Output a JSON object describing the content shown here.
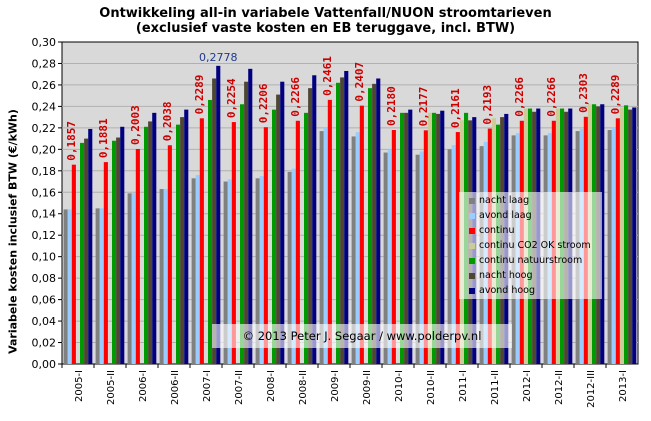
{
  "chart_data": {
    "type": "bar",
    "title": "Ontwikkeling  all-in variabele Vattenfall/NUON stroomtarieven",
    "subtitle": "(exclusief vaste kosten en EB teruggave, incl. BTW)",
    "xlabel": "",
    "ylabel": "Variabele kosten inclusief BTW (€/kWh)",
    "ylim": [
      0,
      0.3
    ],
    "yticks": [
      "0,00",
      "0,02",
      "0,04",
      "0,06",
      "0,08",
      "0,10",
      "0,12",
      "0,14",
      "0,16",
      "0,18",
      "0,20",
      "0,22",
      "0,24",
      "0,26",
      "0,28",
      "0,30"
    ],
    "grid": true,
    "legend_position": "bottom-right",
    "categories": [
      "2005-I",
      "2005-II",
      "2006-I",
      "2006-II",
      "2007-I",
      "2007-II",
      "2008-I",
      "2008-II",
      "2009-I",
      "2009-II",
      "2010-I",
      "2010-II",
      "2011-I",
      "2011-II",
      "2012-I",
      "2012-II",
      "2012-III",
      "2013-I"
    ],
    "series": [
      {
        "name": "nacht laag",
        "color": "#808080",
        "values": [
          0.144,
          0.145,
          0.159,
          0.163,
          0.173,
          0.17,
          0.173,
          0.179,
          0.217,
          0.212,
          0.197,
          0.195,
          0.2,
          0.203,
          0.213,
          0.213,
          0.217,
          0.218
        ]
      },
      {
        "name": "avond laag",
        "color": "#99ccff",
        "values": [
          0.144,
          0.145,
          0.159,
          0.163,
          0.176,
          0.172,
          0.175,
          0.182,
          0.22,
          0.216,
          0.2,
          0.198,
          0.204,
          0.207,
          0.215,
          0.215,
          0.219,
          0.22
        ]
      },
      {
        "name": "continu",
        "color": "#ff0000",
        "values": [
          0.1857,
          0.1881,
          0.2003,
          0.2038,
          0.2289,
          0.2254,
          0.2206,
          0.2266,
          0.2461,
          0.2407,
          0.218,
          0.2177,
          0.2161,
          0.2193,
          0.2266,
          0.2266,
          0.2303,
          0.2289
        ]
      },
      {
        "name": "continu CO2 OK stroom",
        "color": "#cccc99",
        "values": [
          null,
          null,
          null,
          null,
          null,
          null,
          null,
          null,
          null,
          null,
          null,
          0.234,
          0.227,
          0.229,
          0.238,
          0.238,
          0.242,
          0.239
        ]
      },
      {
        "name": "continu natuurstroom",
        "color": "#009900",
        "values": [
          0.206,
          0.208,
          0.221,
          0.223,
          0.246,
          0.242,
          0.237,
          0.234,
          0.262,
          0.257,
          0.234,
          0.234,
          0.234,
          0.223,
          0.238,
          0.238,
          0.242,
          0.241
        ]
      },
      {
        "name": "nacht hoog",
        "color": "#4d4633",
        "values": [
          0.21,
          0.211,
          0.226,
          0.23,
          0.266,
          0.263,
          0.251,
          0.257,
          0.267,
          0.261,
          0.234,
          0.233,
          0.227,
          0.23,
          0.235,
          0.235,
          0.24,
          0.237
        ]
      },
      {
        "name": "avond hoog",
        "color": "#000080",
        "values": [
          0.219,
          0.221,
          0.234,
          0.237,
          0.2778,
          0.275,
          0.263,
          0.269,
          0.273,
          0.266,
          0.237,
          0.236,
          0.23,
          0.233,
          0.238,
          0.238,
          0.242,
          0.239
        ]
      }
    ],
    "data_labels": {
      "continu": [
        "0,1857",
        "0,1881",
        "0,2003",
        "0,2038",
        "0,2289",
        "0,2254",
        "0,2206",
        "0,2266",
        "0,2461",
        "0,2407",
        "0,2180",
        "0,2177",
        "0,2161",
        "0,2193",
        "0,2266",
        "0,2266",
        "0,2303",
        "0,2289"
      ],
      "max_avond_hoog": "0,2778"
    },
    "watermark": "© 2013 Peter J. Segaar / www.polderpv.nl"
  }
}
